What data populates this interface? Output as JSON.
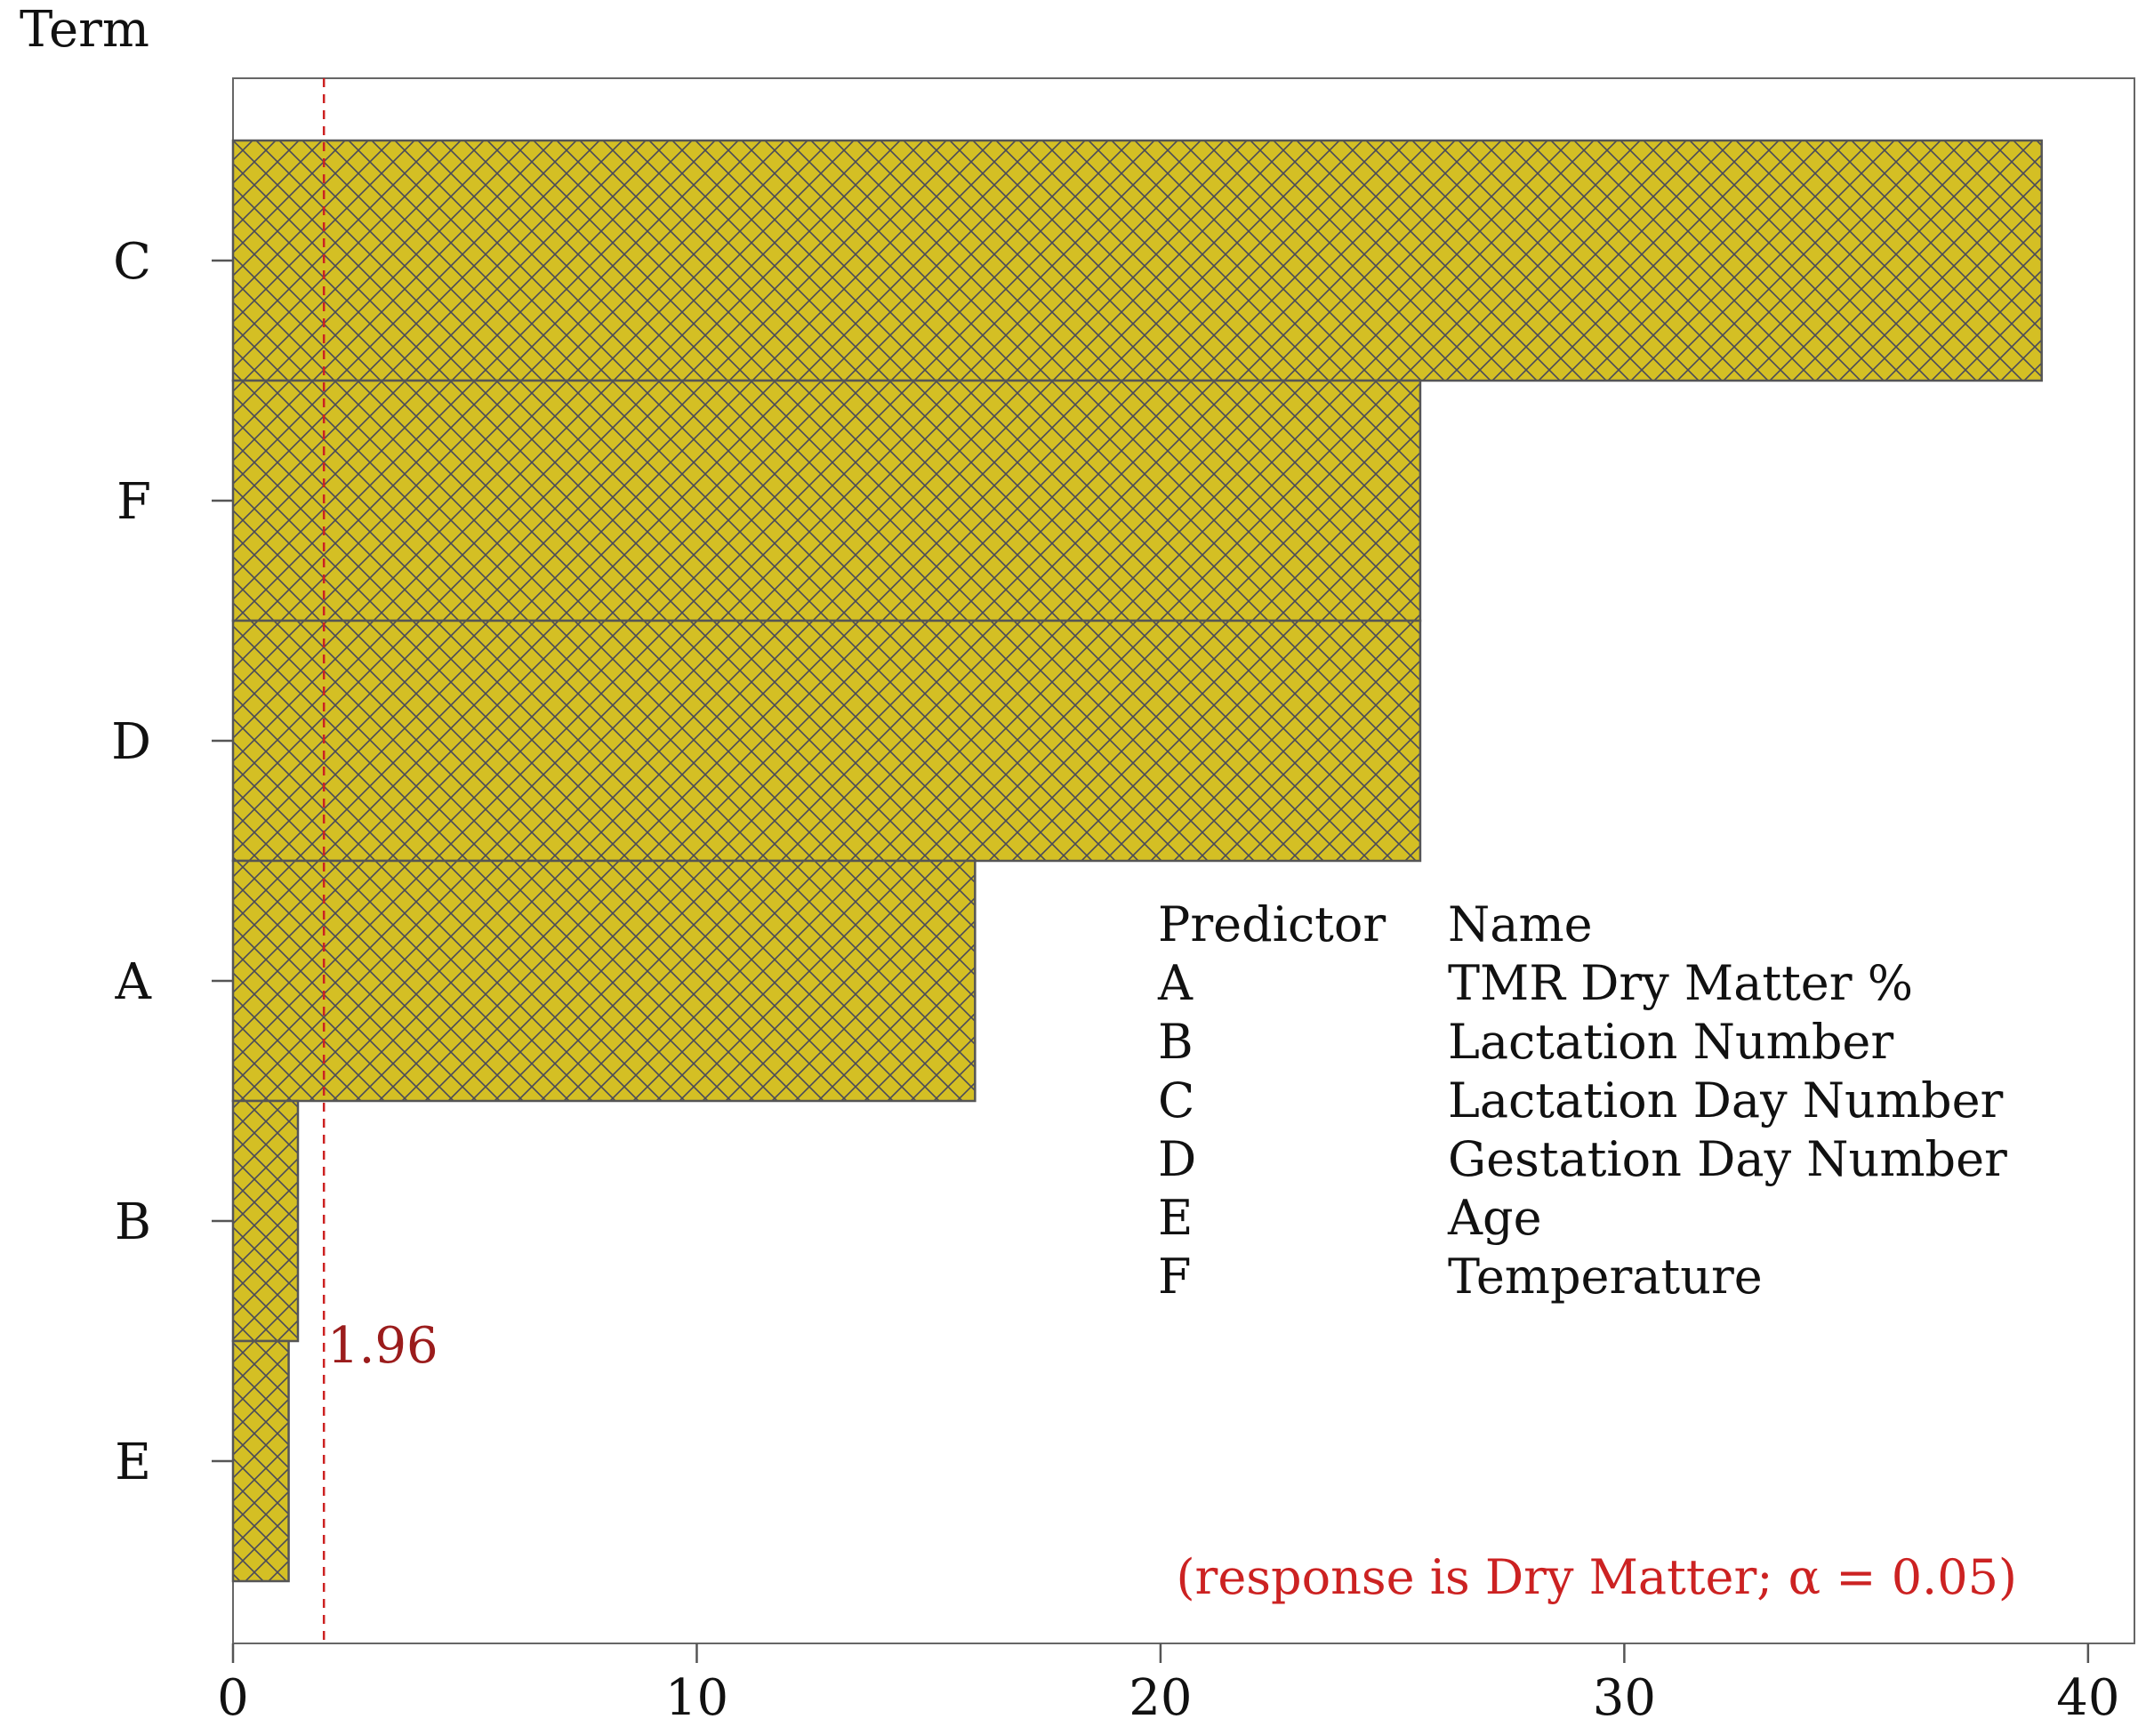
{
  "chart_data": {
    "type": "bar",
    "orientation": "horizontal",
    "ylabel": "Term",
    "xlabel": "",
    "categories": [
      "C",
      "F",
      "D",
      "A",
      "B",
      "E"
    ],
    "values": [
      39.0,
      25.6,
      25.6,
      16.0,
      1.4,
      1.2
    ],
    "xlim": [
      0,
      41
    ],
    "xticks": [
      0,
      10,
      20,
      30,
      40
    ],
    "reference_line": {
      "value": 1.96,
      "label": "1.96",
      "color": "#cc2222"
    },
    "annotation": "(response is Dry Matter; α = 0.05)",
    "annotation_color": "#cc2222",
    "bar_color": "#d4bf24",
    "bar_pattern": "crosshatch",
    "grid": false,
    "legend": {
      "placement": "center-right",
      "headers": [
        "Predictor",
        "Name"
      ],
      "rows": [
        {
          "predictor": "A",
          "name": "TMR Dry Matter %"
        },
        {
          "predictor": "B",
          "name": "Lactation Number"
        },
        {
          "predictor": "C",
          "name": "Lactation Day Number"
        },
        {
          "predictor": "D",
          "name": "Gestation Day Number"
        },
        {
          "predictor": "E",
          "name": "Age"
        },
        {
          "predictor": "F",
          "name": "Temperature"
        }
      ]
    }
  }
}
